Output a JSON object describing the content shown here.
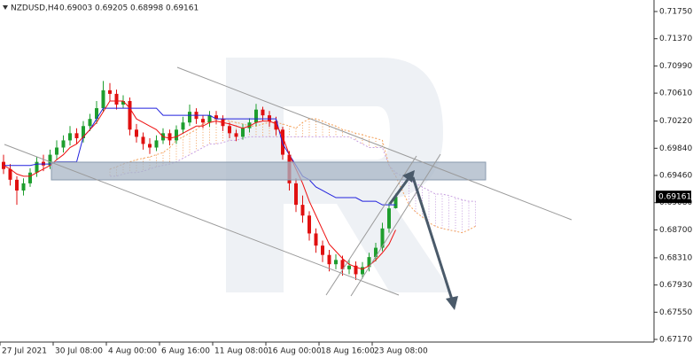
{
  "chart_data": {
    "type": "candlestick",
    "title": "NZDUSD,H4",
    "categories": [
      "27 Jul 2021",
      null,
      null,
      null,
      null,
      null,
      null,
      null,
      "30 Jul 08:00",
      null,
      null,
      null,
      null,
      null,
      null,
      null,
      "4 Aug 00:00",
      null,
      null,
      null,
      null,
      null,
      null,
      null,
      "6 Aug 16:00",
      null,
      null,
      null,
      null,
      null,
      null,
      null,
      "11 Aug 08:00",
      null,
      null,
      null,
      null,
      null,
      null,
      null,
      "16 Aug 00:00",
      null,
      null,
      null,
      null,
      null,
      null,
      null,
      "18 Aug 16:00",
      null,
      null,
      null,
      null,
      null,
      null,
      null,
      "23 Aug 08:00",
      null,
      null,
      null
    ],
    "ohlc": [
      [
        0.6965,
        0.6975,
        0.6948,
        0.6955
      ],
      [
        0.6955,
        0.6962,
        0.6932,
        0.694
      ],
      [
        0.694,
        0.6945,
        0.6905,
        0.6925
      ],
      [
        0.6925,
        0.6942,
        0.6918,
        0.6935
      ],
      [
        0.6935,
        0.6956,
        0.693,
        0.695
      ],
      [
        0.695,
        0.6972,
        0.6944,
        0.6965
      ],
      [
        0.6965,
        0.6975,
        0.6952,
        0.696
      ],
      [
        0.696,
        0.6982,
        0.6955,
        0.6975
      ],
      [
        0.6975,
        0.6995,
        0.6968,
        0.6985
      ],
      [
        0.6985,
        0.7002,
        0.6978,
        0.6995
      ],
      [
        0.6995,
        0.7015,
        0.6988,
        0.7005
      ],
      [
        0.7005,
        0.7012,
        0.699,
        0.6998
      ],
      [
        0.6998,
        0.7022,
        0.6992,
        0.7015
      ],
      [
        0.7015,
        0.7032,
        0.7008,
        0.7025
      ],
      [
        0.7025,
        0.705,
        0.7018,
        0.704
      ],
      [
        0.704,
        0.7078,
        0.7035,
        0.7065
      ],
      [
        0.7065,
        0.7075,
        0.705,
        0.706
      ],
      [
        0.706,
        0.7066,
        0.7038,
        0.7045
      ],
      [
        0.7045,
        0.7058,
        0.704,
        0.705
      ],
      [
        0.705,
        0.7055,
        0.7002,
        0.701
      ],
      [
        0.701,
        0.7018,
        0.6992,
        0.7
      ],
      [
        0.7,
        0.7006,
        0.6982,
        0.699
      ],
      [
        0.699,
        0.6998,
        0.6976,
        0.6985
      ],
      [
        0.6985,
        0.7002,
        0.698,
        0.6995
      ],
      [
        0.6995,
        0.7012,
        0.699,
        0.7005
      ],
      [
        0.7005,
        0.701,
        0.6988,
        0.6995
      ],
      [
        0.6995,
        0.7016,
        0.699,
        0.701
      ],
      [
        0.701,
        0.7028,
        0.7004,
        0.702
      ],
      [
        0.702,
        0.7045,
        0.7015,
        0.7035
      ],
      [
        0.7035,
        0.704,
        0.7018,
        0.7025
      ],
      [
        0.7025,
        0.703,
        0.7012,
        0.702
      ],
      [
        0.702,
        0.7036,
        0.7014,
        0.703
      ],
      [
        0.703,
        0.7036,
        0.7018,
        0.7025
      ],
      [
        0.7025,
        0.703,
        0.7008,
        0.7015
      ],
      [
        0.7015,
        0.702,
        0.6998,
        0.7005
      ],
      [
        0.7005,
        0.701,
        0.6994,
        0.7
      ],
      [
        0.7,
        0.7018,
        0.6996,
        0.7012
      ],
      [
        0.7012,
        0.7026,
        0.7006,
        0.702
      ],
      [
        0.702,
        0.7046,
        0.7015,
        0.7038
      ],
      [
        0.7038,
        0.7042,
        0.7022,
        0.703
      ],
      [
        0.703,
        0.7036,
        0.7014,
        0.7022
      ],
      [
        0.7022,
        0.7028,
        0.7002,
        0.701
      ],
      [
        0.701,
        0.7014,
        0.6968,
        0.6975
      ],
      [
        0.6975,
        0.698,
        0.6925,
        0.6935
      ],
      [
        0.6935,
        0.6942,
        0.6895,
        0.6905
      ],
      [
        0.6905,
        0.6918,
        0.688,
        0.689
      ],
      [
        0.689,
        0.6896,
        0.6855,
        0.6865
      ],
      [
        0.6865,
        0.6872,
        0.6838,
        0.6848
      ],
      [
        0.6848,
        0.6855,
        0.6825,
        0.6835
      ],
      [
        0.6835,
        0.6842,
        0.6812,
        0.6822
      ],
      [
        0.6822,
        0.6836,
        0.6815,
        0.6828
      ],
      [
        0.6828,
        0.6834,
        0.6806,
        0.6815
      ],
      [
        0.6815,
        0.6828,
        0.6808,
        0.682
      ],
      [
        0.682,
        0.6826,
        0.68,
        0.6808
      ],
      [
        0.6808,
        0.6825,
        0.6802,
        0.6818
      ],
      [
        0.6818,
        0.6838,
        0.6812,
        0.6832
      ],
      [
        0.6832,
        0.6852,
        0.6826,
        0.6845
      ],
      [
        0.6845,
        0.688,
        0.684,
        0.6872
      ],
      [
        0.6872,
        0.6908,
        0.6866,
        0.69
      ],
      [
        0.69003,
        0.69205,
        0.68998,
        0.69161
      ]
    ],
    "up_color": "#1e9e2e",
    "down_color": "#e01010",
    "tenkan": [
      0.696,
      0.6955,
      0.6948,
      0.6945,
      0.6945,
      0.695,
      0.6955,
      0.696,
      0.6968,
      0.6975,
      0.6985,
      0.699,
      0.7,
      0.701,
      0.702,
      0.7035,
      0.705,
      0.705,
      0.705,
      0.704,
      0.7025,
      0.702,
      0.7015,
      0.701,
      0.7,
      0.6998,
      0.7,
      0.7005,
      0.701,
      0.7015,
      0.7015,
      0.702,
      0.7022,
      0.702,
      0.7018,
      0.7015,
      0.7012,
      0.7015,
      0.702,
      0.7022,
      0.7022,
      0.7018,
      0.7,
      0.6975,
      0.6955,
      0.6935,
      0.691,
      0.689,
      0.687,
      0.685,
      0.684,
      0.683,
      0.6822,
      0.6818,
      0.6815,
      0.682,
      0.6828,
      0.6838,
      0.685,
      0.687
    ],
    "tenkan_color": "#ee1010",
    "kijun": [
      0.696,
      0.696,
      0.696,
      0.696,
      0.696,
      0.6962,
      0.6962,
      0.6962,
      0.6965,
      0.6965,
      0.6965,
      0.6965,
      0.7,
      0.701,
      0.7025,
      0.704,
      0.704,
      0.704,
      0.704,
      0.704,
      0.704,
      0.704,
      0.704,
      0.704,
      0.703,
      0.703,
      0.703,
      0.703,
      0.703,
      0.703,
      0.703,
      0.703,
      0.7025,
      0.7025,
      0.7025,
      0.7025,
      0.7025,
      0.7025,
      0.7025,
      0.7025,
      0.7025,
      0.7025,
      0.699,
      0.6975,
      0.696,
      0.6945,
      0.694,
      0.693,
      0.6925,
      0.692,
      0.6915,
      0.6915,
      0.6915,
      0.6915,
      0.691,
      0.691,
      0.691,
      0.6905,
      0.6905,
      0.6905
    ],
    "kijun_color": "#2222dd",
    "span_a": [
      null,
      null,
      null,
      null,
      null,
      null,
      null,
      null,
      null,
      null,
      null,
      null,
      null,
      null,
      null,
      null,
      0.6955,
      0.6958,
      0.6962,
      0.6965,
      0.6968,
      0.697,
      0.6972,
      0.6975,
      0.6978,
      0.6985,
      0.6995,
      0.7,
      0.7005,
      0.701,
      0.7018,
      0.7022,
      0.7025,
      0.7025,
      0.7022,
      0.702,
      0.7018,
      0.7015,
      0.7015,
      0.7018,
      0.702,
      0.702,
      0.7018,
      0.7015,
      0.7012,
      0.702,
      0.7025,
      0.7025,
      0.7022,
      0.7018,
      0.7015,
      0.701,
      0.7008,
      0.7005,
      0.7003,
      0.7,
      0.6998,
      0.6995,
      0.696,
      0.6945,
      0.6925,
      0.6905,
      0.6895,
      0.6888,
      0.688,
      0.6875,
      0.6872,
      0.687,
      0.6868,
      0.6866,
      0.687,
      0.6875
    ],
    "span_a_color": "#f4a460",
    "span_b": [
      null,
      null,
      null,
      null,
      null,
      null,
      null,
      null,
      null,
      null,
      null,
      null,
      null,
      null,
      null,
      null,
      0.6945,
      0.6945,
      0.6948,
      0.695,
      0.695,
      0.6952,
      0.6955,
      0.6958,
      0.696,
      0.6962,
      0.6965,
      0.697,
      0.6975,
      0.698,
      0.6985,
      0.699,
      0.699,
      0.6992,
      0.6995,
      0.6995,
      0.6998,
      0.7,
      0.7,
      0.7,
      0.7,
      0.7,
      0.7,
      0.7,
      0.7,
      0.7,
      0.7,
      0.7,
      0.7,
      0.7,
      0.7,
      0.7,
      0.7,
      0.6995,
      0.699,
      0.6985,
      0.6985,
      0.6985,
      0.696,
      0.695,
      0.6945,
      0.694,
      0.6935,
      0.693,
      0.6925,
      0.692,
      0.692,
      0.6918,
      0.6915,
      0.6912,
      0.691,
      0.691
    ],
    "span_b_color": "#c8a0e0",
    "ylim": [
      0.67133,
      0.71911
    ],
    "yticks": [
      {
        "value": 0.7175,
        "label": "0.71750"
      },
      {
        "value": 0.7137,
        "label": "0.71370"
      },
      {
        "value": 0.7099,
        "label": "0.70990"
      },
      {
        "value": 0.7061,
        "label": "0.70610"
      },
      {
        "value": 0.7022,
        "label": "0.70220"
      },
      {
        "value": 0.6984,
        "label": "0.69840"
      },
      {
        "value": 0.6946,
        "label": "0.69460"
      },
      {
        "value": 0.6908,
        "label": "0.69080"
      },
      {
        "value": 0.687,
        "label": "0.68700"
      },
      {
        "value": 0.6831,
        "label": "0.68310"
      },
      {
        "value": 0.6793,
        "label": "0.67930"
      },
      {
        "value": 0.6755,
        "label": "0.67550"
      },
      {
        "value": 0.6717,
        "label": "0.67170"
      }
    ]
  }
}
